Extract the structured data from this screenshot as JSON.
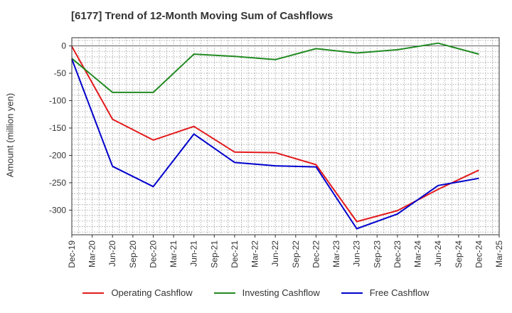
{
  "title": "[6177]  Trend of 12-Month Moving Sum of Cashflows",
  "chart_data": {
    "type": "line",
    "title": "[6177]  Trend of 12-Month Moving Sum of Cashflows",
    "ylabel": "Amount (million yen)",
    "xlabel": "",
    "ylim": [
      -345,
      15
    ],
    "yticks": [
      0,
      -50,
      -100,
      -150,
      -200,
      -250,
      -300
    ],
    "ytick_labels": [
      "0",
      "-50",
      "-100",
      "-150",
      "-200",
      "-250",
      "-300"
    ],
    "x_tick_labels": [
      "Dec-19",
      "Mar-20",
      "Jun-20",
      "Sep-20",
      "Dec-20",
      "Mar-21",
      "Jun-21",
      "Sep-21",
      "Dec-21",
      "Mar-22",
      "Jun-22",
      "Sep-22",
      "Dec-22",
      "Mar-23",
      "Jun-23",
      "Sep-23",
      "Dec-23",
      "Mar-24",
      "Jun-24",
      "Sep-24",
      "Dec-24",
      "Mar-25"
    ],
    "grid": true,
    "legend_position": "bottom",
    "series": [
      {
        "name": "Operating Cashflow",
        "color": "#e31a1c",
        "points": [
          {
            "x": "Dec-19",
            "y": -1
          },
          {
            "x": "Jun-20",
            "y": -134
          },
          {
            "x": "Dec-20",
            "y": -172
          },
          {
            "x": "Jun-21",
            "y": -147
          },
          {
            "x": "Dec-21",
            "y": -194
          },
          {
            "x": "Jun-22",
            "y": -195
          },
          {
            "x": "Dec-22",
            "y": -217
          },
          {
            "x": "Jun-23",
            "y": -321
          },
          {
            "x": "Dec-23",
            "y": -301
          },
          {
            "x": "Jun-24",
            "y": -262
          },
          {
            "x": "Dec-24",
            "y": -227
          }
        ]
      },
      {
        "name": "Investing Cashflow",
        "color": "#228b22",
        "points": [
          {
            "x": "Dec-19",
            "y": -23
          },
          {
            "x": "Jun-20",
            "y": -85
          },
          {
            "x": "Dec-20",
            "y": -85
          },
          {
            "x": "Jun-21",
            "y": -15
          },
          {
            "x": "Dec-21",
            "y": -19
          },
          {
            "x": "Jun-22",
            "y": -25
          },
          {
            "x": "Dec-22",
            "y": -5
          },
          {
            "x": "Jun-23",
            "y": -13
          },
          {
            "x": "Dec-23",
            "y": -7
          },
          {
            "x": "Jun-24",
            "y": 5
          },
          {
            "x": "Dec-24",
            "y": -15
          }
        ]
      },
      {
        "name": "Free Cashflow",
        "color": "#0000cd",
        "points": [
          {
            "x": "Dec-19",
            "y": -24
          },
          {
            "x": "Jun-20",
            "y": -220
          },
          {
            "x": "Dec-20",
            "y": -257
          },
          {
            "x": "Jun-21",
            "y": -161
          },
          {
            "x": "Dec-21",
            "y": -213
          },
          {
            "x": "Jun-22",
            "y": -219
          },
          {
            "x": "Dec-22",
            "y": -221
          },
          {
            "x": "Jun-23",
            "y": -334
          },
          {
            "x": "Dec-23",
            "y": -307
          },
          {
            "x": "Jun-24",
            "y": -255
          },
          {
            "x": "Dec-24",
            "y": -242
          }
        ]
      }
    ]
  }
}
